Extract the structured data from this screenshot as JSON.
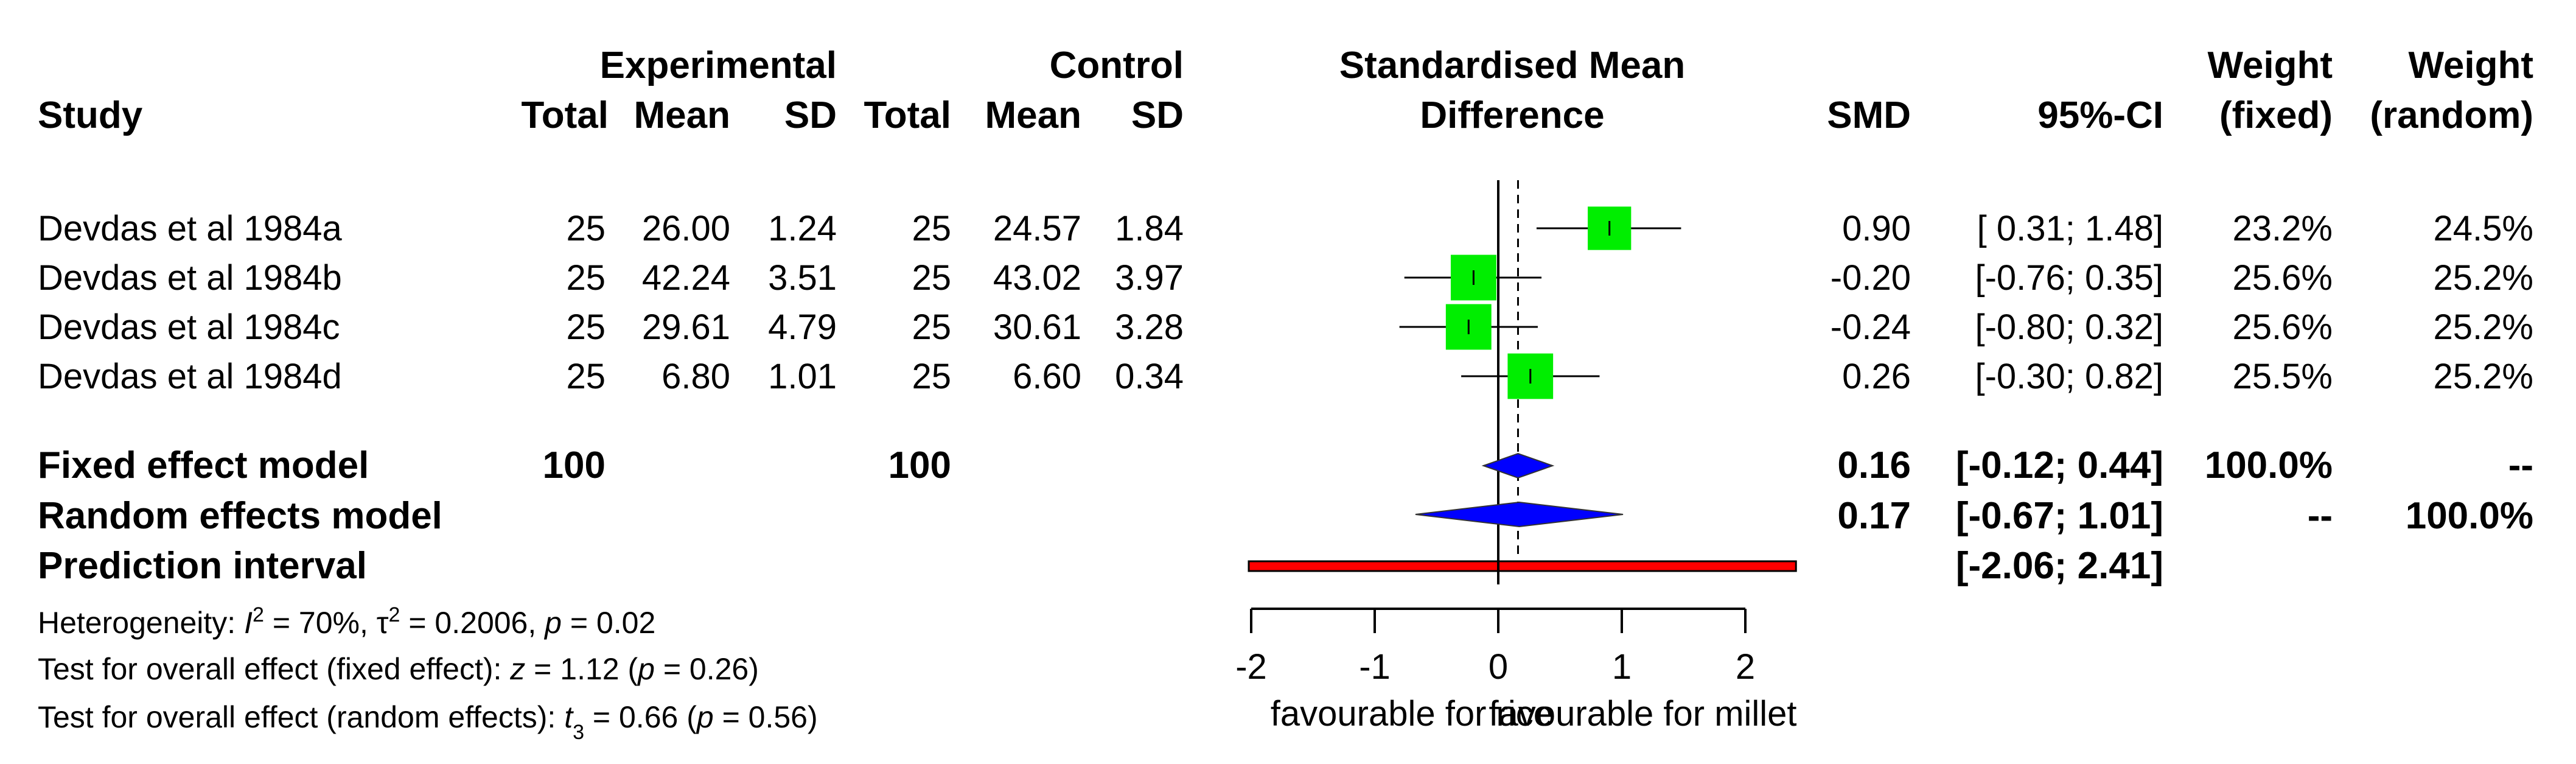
{
  "chart_data": {
    "type": "forest",
    "title": "Standardised Mean Difference",
    "headers": {
      "study": "Study",
      "experimental": "Experimental",
      "control": "Control",
      "total": "Total",
      "mean": "Mean",
      "sd": "SD",
      "effect_line1": "Standardised Mean",
      "effect_line2": "Difference",
      "smd": "SMD",
      "ci": "95%-CI",
      "weight": "Weight",
      "fixed": "(fixed)",
      "random": "(random)"
    },
    "studies": [
      {
        "name": "Devdas et al 1984a",
        "e_total": "25",
        "e_mean": "26.00",
        "e_sd": "1.24",
        "c_total": "25",
        "c_mean": "24.57",
        "c_sd": "1.84",
        "smd_text": "0.90",
        "ci_text": "[ 0.31; 1.48]",
        "w_fixed": "23.2%",
        "w_random": "24.5%",
        "smd": 0.9,
        "lower": 0.31,
        "upper": 1.48,
        "weight": 23.2
      },
      {
        "name": "Devdas et al 1984b",
        "e_total": "25",
        "e_mean": "42.24",
        "e_sd": "3.51",
        "c_total": "25",
        "c_mean": "43.02",
        "c_sd": "3.97",
        "smd_text": "-0.20",
        "ci_text": "[-0.76; 0.35]",
        "w_fixed": "25.6%",
        "w_random": "25.2%",
        "smd": -0.2,
        "lower": -0.76,
        "upper": 0.35,
        "weight": 25.6
      },
      {
        "name": "Devdas et al 1984c",
        "e_total": "25",
        "e_mean": "29.61",
        "e_sd": "4.79",
        "c_total": "25",
        "c_mean": "30.61",
        "c_sd": "3.28",
        "smd_text": "-0.24",
        "ci_text": "[-0.80; 0.32]",
        "w_fixed": "25.6%",
        "w_random": "25.2%",
        "smd": -0.24,
        "lower": -0.8,
        "upper": 0.32,
        "weight": 25.6
      },
      {
        "name": "Devdas et al 1984d",
        "e_total": "25",
        "e_mean": "6.80",
        "e_sd": "1.01",
        "c_total": "25",
        "c_mean": "6.60",
        "c_sd": "0.34",
        "smd_text": "0.26",
        "ci_text": "[-0.30; 0.82]",
        "w_fixed": "25.5%",
        "w_random": "25.2%",
        "smd": 0.26,
        "lower": -0.3,
        "upper": 0.82,
        "weight": 25.5
      }
    ],
    "fixed_model": {
      "label": "Fixed effect model",
      "e_total": "100",
      "c_total": "100",
      "smd_text": "0.16",
      "ci_text": "[-0.12; 0.44]",
      "w_fixed": "100.0%",
      "w_random": "--",
      "smd": 0.16,
      "lower": -0.12,
      "upper": 0.44
    },
    "random_model": {
      "label": "Random effects model",
      "smd_text": "0.17",
      "ci_text": "[-0.67; 1.01]",
      "w_fixed": "--",
      "w_random": "100.0%",
      "smd": 0.17,
      "lower": -0.67,
      "upper": 1.01
    },
    "prediction": {
      "label": "Prediction interval",
      "ci_text": "[-2.06; 2.41]",
      "lower": -2.06,
      "upper": 2.41
    },
    "heterogeneity": {
      "prefix": "Heterogeneity: ",
      "i2_sym": "I",
      "i2_val": " = 70%, ",
      "tau_sym": "τ",
      "tau_val": " = 0.2006, ",
      "p_sym": "p",
      "p_val": " = 0.02"
    },
    "test_fixed": {
      "prefix": "Test for overall effect (fixed effect): ",
      "stat": "z",
      "stat_val": " = 1.12 (",
      "p_sym": "p",
      "p_val": " = 0.26)"
    },
    "test_random": {
      "prefix": "Test for overall effect (random effects): ",
      "stat": "t",
      "stat_sub": "3",
      "stat_val": " = 0.66 (",
      "p_sym": "p",
      "p_val": " = 0.56)"
    },
    "axis": {
      "min": -2,
      "max": 2,
      "ticks": [
        -2,
        -1,
        0,
        1,
        2
      ],
      "left_label": "favourable for rice",
      "right_label": "favourable for millet"
    },
    "colors": {
      "square": "#00ee00",
      "diamond": "#0000ff",
      "prediction": "#ff0000",
      "line": "#000000"
    }
  }
}
